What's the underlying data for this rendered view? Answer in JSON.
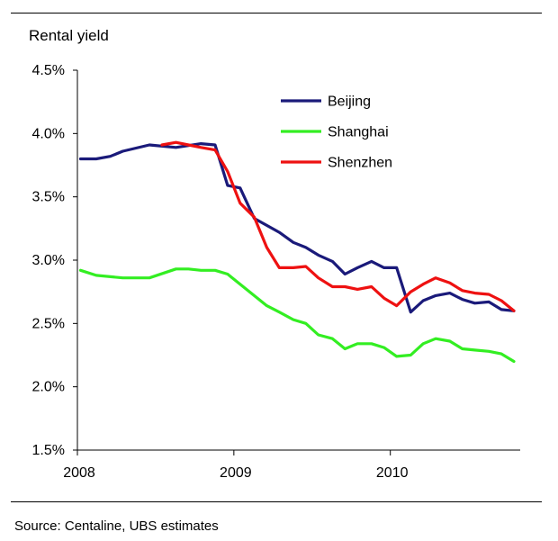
{
  "chart_data": {
    "type": "line",
    "ylabel": "Rental yield",
    "source": "Source: Centaline, UBS estimates",
    "ylim": [
      1.5,
      4.5
    ],
    "xlim": [
      2008.0,
      2010.83
    ],
    "y_ticks": [
      "1.5%",
      "2.0%",
      "2.5%",
      "3.0%",
      "3.5%",
      "4.0%",
      "4.5%"
    ],
    "y_tick_values": [
      1.5,
      2.0,
      2.5,
      3.0,
      3.5,
      4.0,
      4.5
    ],
    "x_ticks": [
      "2008",
      "2009",
      "2010"
    ],
    "x_tick_values": [
      2008,
      2009,
      2010
    ],
    "legend_position": "top-center",
    "grid": false,
    "series": [
      {
        "name": "Beijing",
        "color": "#1a1a7a",
        "x": [
          2008.02,
          2008.12,
          2008.21,
          2008.29,
          2008.46,
          2008.63,
          2008.79,
          2008.88,
          2008.96,
          2009.04,
          2009.13,
          2009.29,
          2009.38,
          2009.46,
          2009.54,
          2009.63,
          2009.71,
          2009.79,
          2009.88,
          2009.96,
          2010.04,
          2010.13,
          2010.21,
          2010.29,
          2010.38,
          2010.46,
          2010.54,
          2010.63,
          2010.71,
          2010.79
        ],
        "values": [
          3.8,
          3.8,
          3.82,
          3.86,
          3.91,
          3.89,
          3.92,
          3.91,
          3.59,
          3.57,
          3.33,
          3.22,
          3.14,
          3.1,
          3.04,
          2.99,
          2.89,
          2.94,
          2.99,
          2.94,
          2.94,
          2.59,
          2.68,
          2.72,
          2.74,
          2.69,
          2.66,
          2.67,
          2.61,
          2.6
        ]
      },
      {
        "name": "Shanghai",
        "color": "#33ee22",
        "x": [
          2008.02,
          2008.12,
          2008.29,
          2008.46,
          2008.63,
          2008.71,
          2008.79,
          2008.88,
          2008.96,
          2009.04,
          2009.21,
          2009.29,
          2009.38,
          2009.46,
          2009.54,
          2009.63,
          2009.71,
          2009.79,
          2009.88,
          2009.96,
          2010.04,
          2010.13,
          2010.21,
          2010.29,
          2010.38,
          2010.46,
          2010.54,
          2010.63,
          2010.71,
          2010.79
        ],
        "values": [
          2.92,
          2.88,
          2.86,
          2.86,
          2.93,
          2.93,
          2.92,
          2.92,
          2.89,
          2.81,
          2.64,
          2.59,
          2.53,
          2.5,
          2.41,
          2.38,
          2.3,
          2.34,
          2.34,
          2.31,
          2.24,
          2.25,
          2.34,
          2.38,
          2.36,
          2.3,
          2.29,
          2.28,
          2.26,
          2.2
        ]
      },
      {
        "name": "Shenzhen",
        "color": "#ee1111",
        "x": [
          2008.54,
          2008.63,
          2008.71,
          2008.79,
          2008.88,
          2008.96,
          2009.04,
          2009.13,
          2009.21,
          2009.29,
          2009.38,
          2009.46,
          2009.54,
          2009.63,
          2009.71,
          2009.79,
          2009.88,
          2009.96,
          2010.04,
          2010.13,
          2010.21,
          2010.29,
          2010.38,
          2010.46,
          2010.54,
          2010.63,
          2010.71,
          2010.79
        ],
        "values": [
          3.91,
          3.93,
          3.91,
          3.89,
          3.87,
          3.7,
          3.45,
          3.34,
          3.1,
          2.94,
          2.94,
          2.95,
          2.86,
          2.79,
          2.79,
          2.77,
          2.79,
          2.7,
          2.64,
          2.75,
          2.81,
          2.86,
          2.82,
          2.76,
          2.74,
          2.73,
          2.68,
          2.6
        ]
      }
    ]
  }
}
